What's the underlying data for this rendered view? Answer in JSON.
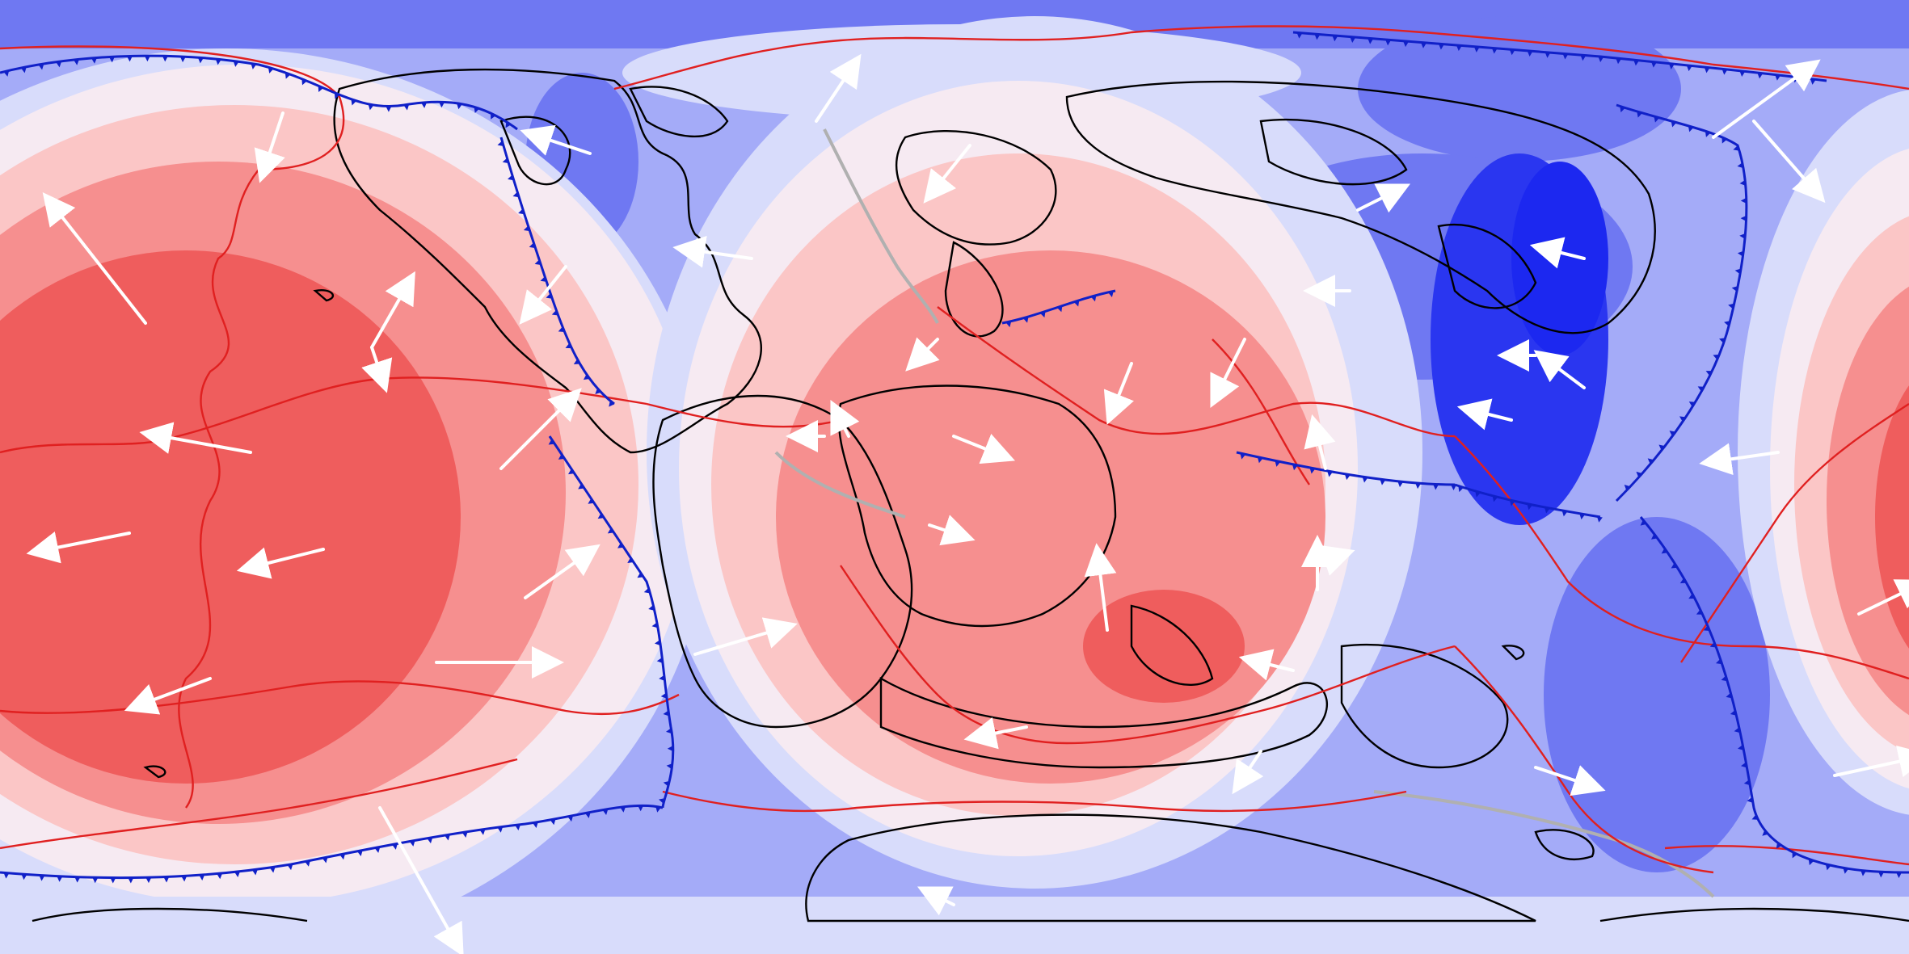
{
  "map": {
    "projection": "equirectangular",
    "title": "",
    "colors": {
      "hot_strong": "#ef5d5d",
      "hot_mid": "#f68f8f",
      "hot_light": "#fbc6c6",
      "neutral": "#f6eaf2",
      "cool_light": "#d8dcfb",
      "cool_mid": "#a4abf8",
      "cool_strong": "#6f78f2",
      "cool_deep": "#2a36f0",
      "coastline": "#000000",
      "plate_boundary": "#e02020",
      "subduction_zone": "#1020c8",
      "ridge_grey": "#b0b0b0",
      "velocity_arrow": "#ffffff"
    },
    "legend": "none",
    "icons": {
      "velocity": "arrow-icon",
      "subduction": "triangle-icon"
    }
  }
}
